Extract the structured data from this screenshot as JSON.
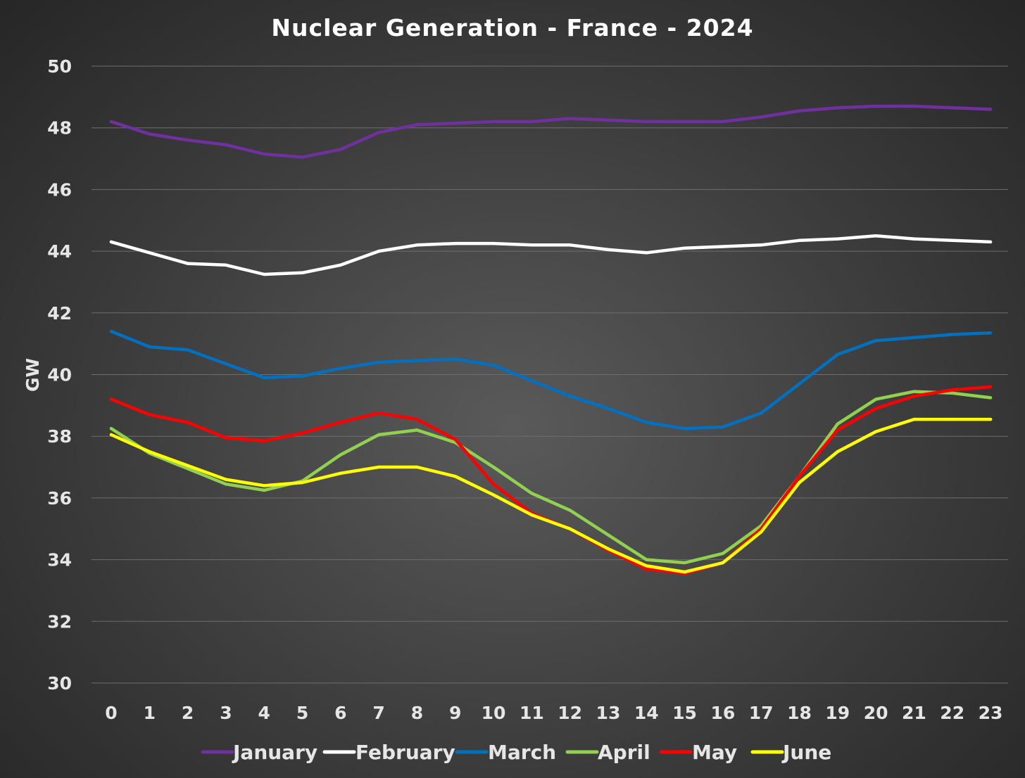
{
  "chart_data": {
    "type": "line",
    "title": "Nuclear Generation - France - 2024",
    "xlabel": "",
    "ylabel": "GW",
    "ylim": [
      30,
      50
    ],
    "yticks": [
      30,
      32,
      34,
      36,
      38,
      40,
      42,
      44,
      46,
      48,
      50
    ],
    "grid": true,
    "legend_position": "bottom",
    "x": [
      0,
      1,
      2,
      3,
      4,
      5,
      6,
      7,
      8,
      9,
      10,
      11,
      12,
      13,
      14,
      15,
      16,
      17,
      18,
      19,
      20,
      21,
      22,
      23
    ],
    "series": [
      {
        "name": "January",
        "color": "#7030a0",
        "values": [
          48.2,
          47.8,
          47.6,
          47.45,
          47.15,
          47.05,
          47.3,
          47.85,
          48.1,
          48.15,
          48.2,
          48.2,
          48.3,
          48.25,
          48.2,
          48.2,
          48.2,
          48.35,
          48.55,
          48.65,
          48.7,
          48.7,
          48.65,
          48.6
        ]
      },
      {
        "name": "February",
        "color": "#ffffff",
        "values": [
          44.3,
          43.95,
          43.6,
          43.55,
          43.25,
          43.3,
          43.55,
          44.0,
          44.2,
          44.25,
          44.25,
          44.2,
          44.2,
          44.05,
          43.95,
          44.1,
          44.15,
          44.2,
          44.35,
          44.4,
          44.5,
          44.4,
          44.35,
          44.3
        ]
      },
      {
        "name": "March",
        "color": "#0070c0",
        "values": [
          41.4,
          40.9,
          40.8,
          40.35,
          39.9,
          39.95,
          40.2,
          40.4,
          40.45,
          40.5,
          40.3,
          39.8,
          39.3,
          38.9,
          38.45,
          38.25,
          38.3,
          38.75,
          39.7,
          40.65,
          41.1,
          41.2,
          41.3,
          41.35
        ]
      },
      {
        "name": "April",
        "color": "#92d050",
        "values": [
          38.25,
          37.45,
          36.95,
          36.45,
          36.25,
          36.55,
          37.4,
          38.05,
          38.2,
          37.8,
          37.0,
          36.15,
          35.6,
          34.8,
          34.0,
          33.9,
          34.2,
          35.1,
          36.7,
          38.4,
          39.2,
          39.45,
          39.4,
          39.25
        ]
      },
      {
        "name": "May",
        "color": "#ff0000",
        "values": [
          39.2,
          38.7,
          38.45,
          37.95,
          37.85,
          38.1,
          38.45,
          38.75,
          38.55,
          37.9,
          36.45,
          35.5,
          35.0,
          34.3,
          33.7,
          33.55,
          33.9,
          35.0,
          36.7,
          38.2,
          38.9,
          39.3,
          39.5,
          39.6
        ]
      },
      {
        "name": "June",
        "color": "#ffff00",
        "values": [
          38.05,
          37.5,
          37.05,
          36.6,
          36.4,
          36.5,
          36.8,
          37.0,
          37.0,
          36.7,
          36.1,
          35.45,
          35.0,
          34.35,
          33.8,
          33.6,
          33.9,
          34.9,
          36.5,
          37.5,
          38.15,
          38.55,
          38.55,
          38.55
        ]
      }
    ]
  }
}
